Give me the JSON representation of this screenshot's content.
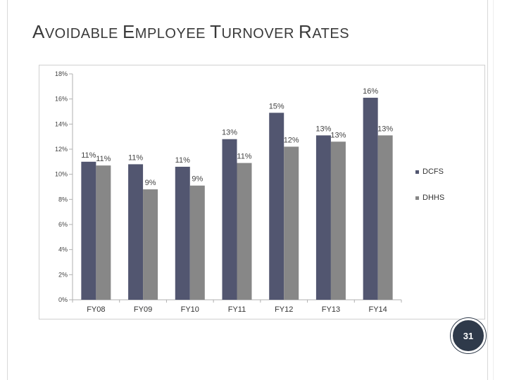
{
  "slide": {
    "title_parts": [
      {
        "text": "A",
        "cls": "big"
      },
      {
        "text": "VOIDABLE ",
        "cls": "small"
      },
      {
        "text": "E",
        "cls": "big"
      },
      {
        "text": "MPLOYEE ",
        "cls": "small"
      },
      {
        "text": "T",
        "cls": "big"
      },
      {
        "text": "URNOVER ",
        "cls": "small"
      },
      {
        "text": "R",
        "cls": "big"
      },
      {
        "text": "ATES",
        "cls": "small"
      }
    ],
    "page_number": "31"
  },
  "colors": {
    "DCFS": "#525670",
    "DHHS": "#878787",
    "grid_axis": "#b0b0b0"
  },
  "chart_data": {
    "type": "bar",
    "title": "",
    "xlabel": "",
    "ylabel": "",
    "categories": [
      "FY08",
      "FY09",
      "FY10",
      "FY11",
      "FY12",
      "FY13",
      "FY14"
    ],
    "series": [
      {
        "name": "DCFS",
        "values": [
          11.0,
          10.8,
          10.6,
          12.8,
          14.9,
          13.1,
          16.1
        ],
        "labels": [
          "11%",
          "11%",
          "11%",
          "13%",
          "15%",
          "13%",
          "16%"
        ]
      },
      {
        "name": "DHHS",
        "values": [
          10.7,
          8.8,
          9.1,
          10.9,
          12.2,
          12.6,
          13.1
        ],
        "labels": [
          "11%",
          "9%",
          "9%",
          "11%",
          "12%",
          "13%",
          "13%"
        ]
      }
    ],
    "ylim": [
      0,
      18
    ],
    "yticks": [
      "0%",
      "2%",
      "4%",
      "6%",
      "8%",
      "10%",
      "12%",
      "14%",
      "16%",
      "18%"
    ],
    "grid": false,
    "legend": "right"
  }
}
